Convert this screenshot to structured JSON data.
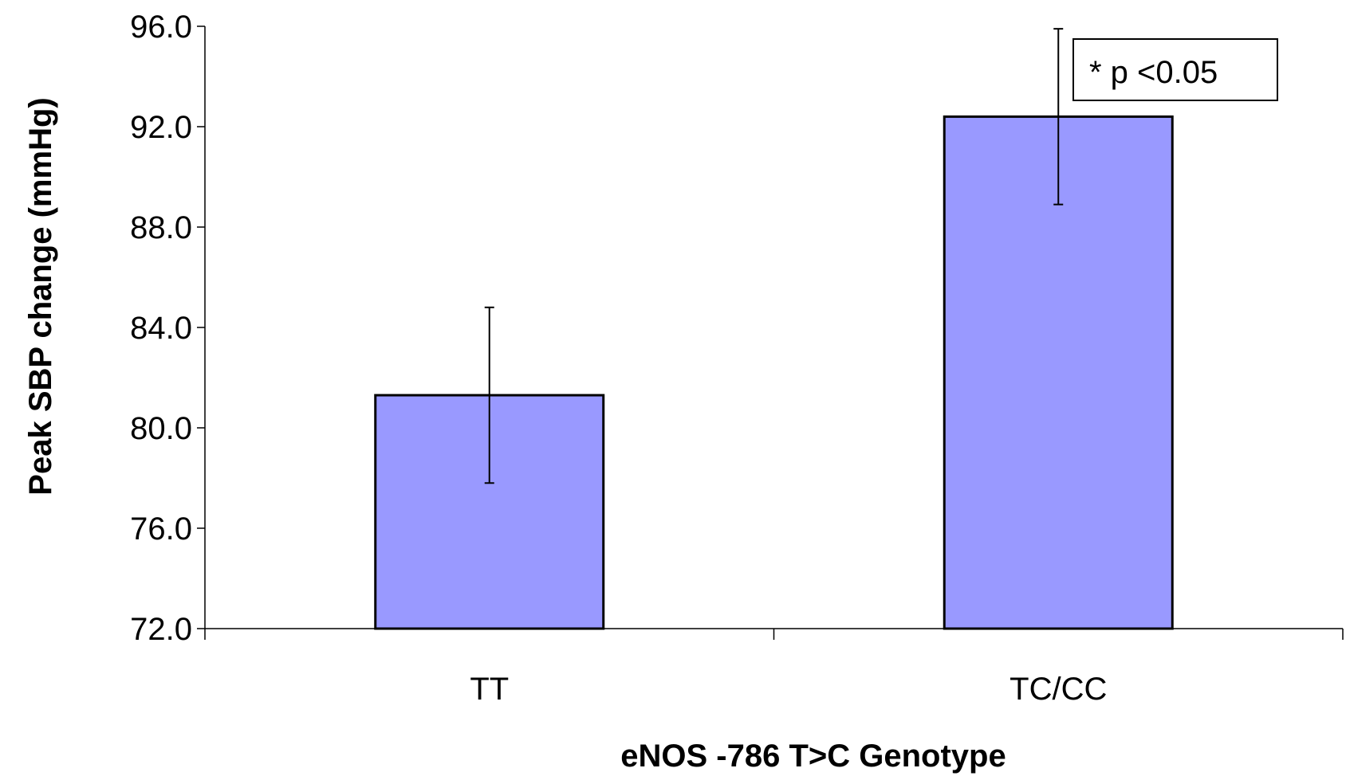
{
  "chart_data": {
    "type": "bar",
    "categories": [
      "TT",
      "TC/CC"
    ],
    "values": [
      81.3,
      92.4
    ],
    "error": [
      3.5,
      3.5
    ],
    "bar_color": "#9999ff",
    "xlabel": "eNOS -786 T>C Genotype",
    "ylabel": "Peak SBP change (mmHg)",
    "ylim": [
      72.0,
      96.0
    ],
    "yticks": [
      "72.0",
      "76.0",
      "80.0",
      "84.0",
      "88.0",
      "92.0",
      "96.0"
    ],
    "grid": false,
    "annotation": "* p <0.05"
  }
}
